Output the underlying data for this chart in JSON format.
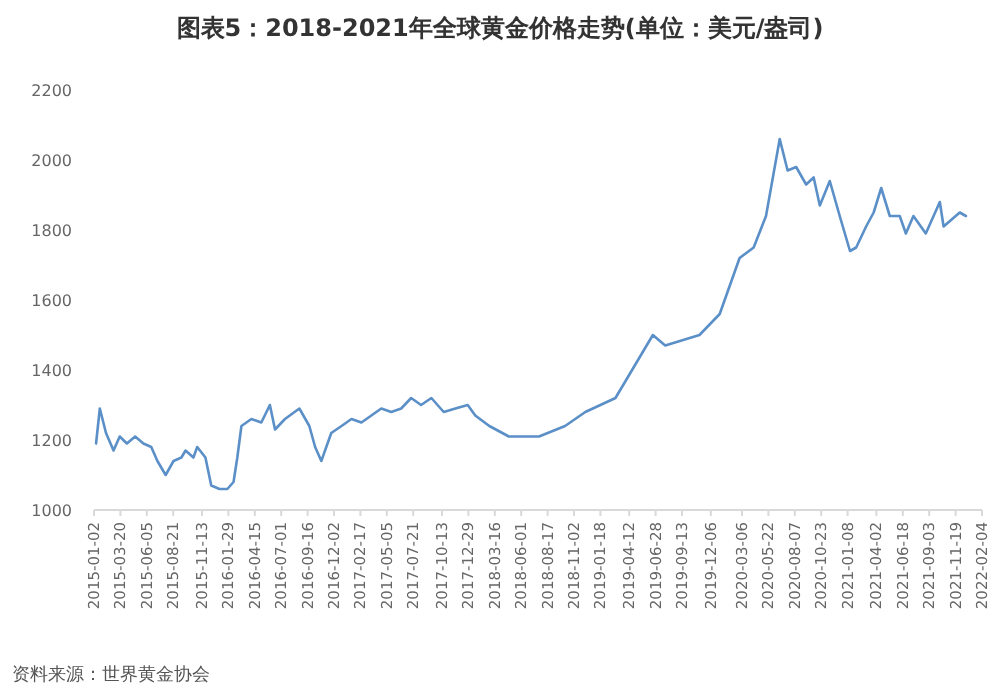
{
  "chart_data": {
    "type": "line",
    "title": "图表5：2018-2021年全球黄金价格走势(单位：美元/盎司)",
    "annotations": [
      "资料来源：世界黄金协会"
    ],
    "x": [
      "2015-01-08",
      "2015-01-19",
      "2015-02-06",
      "2015-02-28",
      "2015-03-18",
      "2015-04-08",
      "2015-05-02",
      "2015-05-26",
      "2015-06-18",
      "2015-07-06",
      "2015-07-30",
      "2015-08-22",
      "2015-09-14",
      "2015-09-26",
      "2015-10-19",
      "2015-10-30",
      "2015-11-23",
      "2015-12-10",
      "2016-01-03",
      "2016-01-26",
      "2016-02-13",
      "2016-02-24",
      "2016-03-07",
      "2016-04-05",
      "2016-05-04",
      "2016-05-29",
      "2016-06-13",
      "2016-07-12",
      "2016-08-23",
      "2016-09-21",
      "2016-10-08",
      "2016-10-26",
      "2016-11-24",
      "2016-12-24",
      "2017-01-22",
      "2017-02-20",
      "2017-03-21",
      "2017-04-19",
      "2017-05-18",
      "2017-06-16",
      "2017-07-15",
      "2017-08-13",
      "2017-09-12",
      "2017-10-18",
      "2017-11-21",
      "2017-12-27",
      "2018-01-18",
      "2018-02-28",
      "2018-04-26",
      "2018-07-23",
      "2018-10-07",
      "2018-12-05",
      "2019-03-03",
      "2019-06-20",
      "2019-07-26",
      "2019-11-03",
      "2020-01-01",
      "2020-02-28",
      "2020-04-09",
      "2020-05-15",
      "2020-06-24",
      "2020-07-17",
      "2020-08-11",
      "2020-09-09",
      "2020-10-01",
      "2020-10-19",
      "2020-11-17",
      "2020-12-16",
      "2021-01-15",
      "2021-02-02",
      "2021-03-03",
      "2021-03-25",
      "2021-04-16",
      "2021-05-11",
      "2021-06-09",
      "2021-06-27",
      "2021-07-19",
      "2021-08-24",
      "2021-10-04",
      "2021-10-15",
      "2021-12-01",
      "2021-12-19"
    ],
    "series": [
      {
        "color": "#5b8fc7",
        "values": [
          1190,
          1290,
          1220,
          1170,
          1210,
          1190,
          1210,
          1190,
          1180,
          1140,
          1100,
          1140,
          1150,
          1170,
          1150,
          1180,
          1150,
          1070,
          1060,
          1060,
          1080,
          1150,
          1240,
          1260,
          1250,
          1300,
          1230,
          1260,
          1290,
          1240,
          1180,
          1140,
          1220,
          1240,
          1260,
          1250,
          1270,
          1290,
          1280,
          1290,
          1320,
          1300,
          1320,
          1280,
          1290,
          1300,
          1270,
          1240,
          1210,
          1210,
          1240,
          1280,
          1320,
          1500,
          1470,
          1500,
          1560,
          1720,
          1750,
          1840,
          2060,
          1970,
          1980,
          1930,
          1950,
          1870,
          1940,
          1840,
          1740,
          1750,
          1810,
          1850,
          1920,
          1840,
          1840,
          1790,
          1840,
          1790,
          1880,
          1810,
          1850,
          1840
        ]
      }
    ],
    "xlim": [
      "2015-01-02",
      "2022-02-04"
    ],
    "xticks": [
      "2015-01-02",
      "2015-03-20",
      "2015-06-05",
      "2015-08-21",
      "2015-11-13",
      "2016-01-29",
      "2016-04-15",
      "2016-07-01",
      "2016-09-16",
      "2016-12-02",
      "2017-02-17",
      "2017-05-05",
      "2017-07-21",
      "2017-10-13",
      "2017-12-29",
      "2018-03-16",
      "2018-06-01",
      "2018-08-17",
      "2018-11-02",
      "2019-01-18",
      "2019-04-12",
      "2019-06-28",
      "2019-09-13",
      "2019-12-06",
      "2020-03-06",
      "2020-05-22",
      "2020-08-07",
      "2020-10-23",
      "2021-01-08",
      "2021-04-02",
      "2021-06-18",
      "2021-09-03",
      "2021-11-19",
      "2022-02-04"
    ],
    "ylim": [
      1000,
      2200
    ],
    "yticks": [
      1000,
      1200,
      1400,
      1600,
      1800,
      2000,
      2200
    ],
    "grid": false,
    "marker": "none",
    "line_style": "solid"
  }
}
